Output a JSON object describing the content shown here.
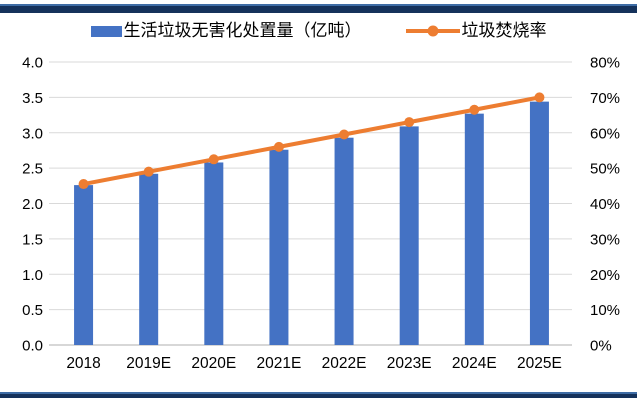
{
  "page": {
    "rule_color": "#15325B",
    "rule_edge_color": "#3E6CA5",
    "background": "#FFFFFF"
  },
  "legend": {
    "items": [
      {
        "label": "生活垃圾无害化处置量（亿吨）",
        "marker": "bar-swatch",
        "color": "#4472C4"
      },
      {
        "label": "垃圾焚烧率",
        "marker": "line-dot-swatch",
        "color": "#ED7D31"
      }
    ]
  },
  "chart_data": {
    "type": "bar",
    "subtype": "bar-line-combo",
    "categories": [
      "2018",
      "2019E",
      "2020E",
      "2021E",
      "2022E",
      "2023E",
      "2024E",
      "2025E"
    ],
    "series": [
      {
        "name": "生活垃圾无害化处置量（亿吨）",
        "type": "bar",
        "axis": "left",
        "color": "#4472C4",
        "values": [
          2.26,
          2.42,
          2.58,
          2.76,
          2.93,
          3.09,
          3.27,
          3.44
        ]
      },
      {
        "name": "垃圾焚烧率",
        "type": "line",
        "axis": "right",
        "color": "#ED7D31",
        "values": [
          45.5,
          49.0,
          52.5,
          56.0,
          59.5,
          63.0,
          66.5,
          70.0
        ]
      }
    ],
    "left_axis": {
      "min": 0,
      "max": 4,
      "tick_labels": [
        "4.0",
        "3.5",
        "3.0",
        "2.5",
        "2.0",
        "1.5",
        "1.0",
        "0.5",
        "0.0"
      ]
    },
    "right_axis": {
      "min": 0,
      "max": 80,
      "tick_labels": [
        "80%",
        "70%",
        "60%",
        "50%",
        "40%",
        "30%",
        "20%",
        "10%",
        "0%"
      ]
    },
    "grid": true,
    "gridline_color": "#D9D9D9",
    "axis_line_color": "#BFBFBF",
    "tick_text_color": "#000000",
    "legend_position": "top"
  }
}
